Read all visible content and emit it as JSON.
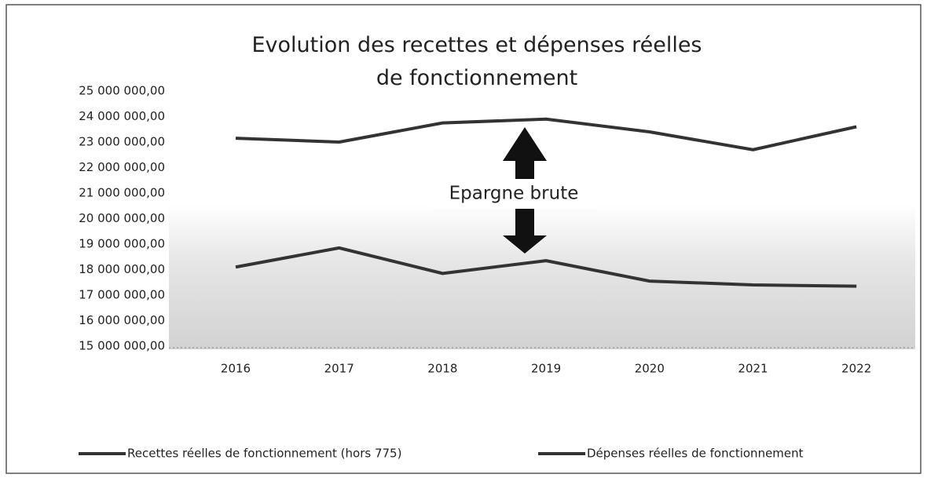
{
  "chart_data": {
    "type": "line",
    "title": "Evolution des recettes et dépenses réelles de fonctionnement",
    "annotation": "Epargne brute",
    "categories": [
      "2016",
      "2017",
      "2018",
      "2019",
      "2020",
      "2021",
      "2022"
    ],
    "series": [
      {
        "name": "Recettes réelles de fonctionnement (hors 775)",
        "color": "#333333",
        "values": [
          23150000,
          23000000,
          23750000,
          23900000,
          23400000,
          22700000,
          23600000
        ]
      },
      {
        "name": "Dépenses réelles de fonctionnement",
        "color": "#333333",
        "values": [
          18100000,
          18850000,
          17850000,
          18350000,
          17550000,
          17400000,
          17350000
        ]
      }
    ],
    "ylim": [
      15000000,
      25000000
    ],
    "yticks": [
      {
        "value": 15000000,
        "label": "15 000 000,00"
      },
      {
        "value": 16000000,
        "label": "16 000 000,00"
      },
      {
        "value": 17000000,
        "label": "17 000 000,00"
      },
      {
        "value": 18000000,
        "label": "18 000 000,00"
      },
      {
        "value": 19000000,
        "label": "19 000 000,00"
      },
      {
        "value": 20000000,
        "label": "20 000 000,00"
      },
      {
        "value": 21000000,
        "label": "21 000 000,00"
      },
      {
        "value": 22000000,
        "label": "22 000 000,00"
      },
      {
        "value": 23000000,
        "label": "23 000 000,00"
      },
      {
        "value": 24000000,
        "label": "24 000 000,00"
      },
      {
        "value": 25000000,
        "label": "25 000 000,00"
      }
    ],
    "grid": false,
    "legend": "bottom"
  }
}
